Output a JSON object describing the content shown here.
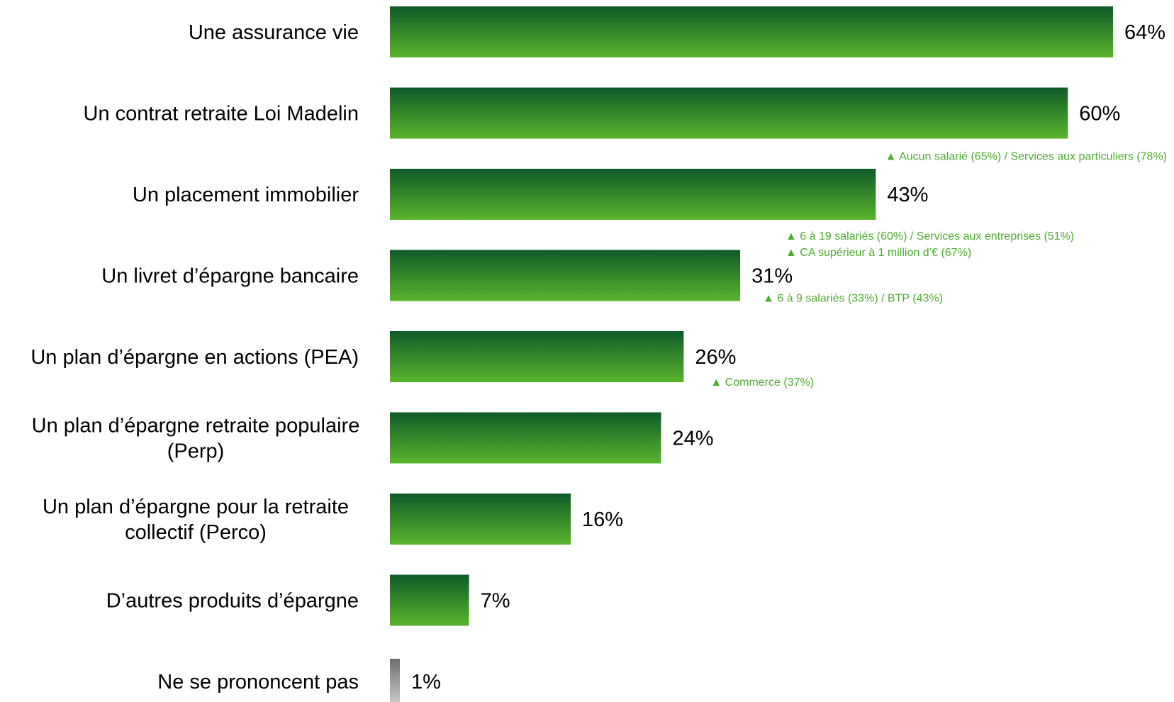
{
  "chart_data": {
    "type": "bar",
    "orientation": "horizontal",
    "unit": "%",
    "xlim": [
      0,
      64
    ],
    "colors": {
      "bar_top": "#0f5a29",
      "bar_bottom": "#5ab52c",
      "na_bar_top": "#6e6e6e",
      "na_bar_bottom": "#d4d4d4",
      "note": "#4fad2f",
      "text": "#000000"
    },
    "categories": [
      {
        "label": [
          "Une assurance vie"
        ],
        "value": 64,
        "value_label": "64%",
        "style": "green",
        "notes": []
      },
      {
        "label": [
          "Un contrat retraite Loi Madelin"
        ],
        "value": 60,
        "value_label": "60%",
        "style": "green",
        "notes": [
          "Aucun salarié (65%) / Services aux particuliers (78%)"
        ]
      },
      {
        "label": [
          "Un placement immobilier"
        ],
        "value": 43,
        "value_label": "43%",
        "style": "green",
        "notes": [
          "6 à 19 salariés (60%) / Services aux entreprises (51%)",
          "CA supérieur à 1 million d’€ (67%)"
        ]
      },
      {
        "label": [
          "Un livret d’épargne bancaire"
        ],
        "value": 31,
        "value_label": "31%",
        "style": "green",
        "notes": [
          "6 à 9 salariés (33%) / BTP (43%)"
        ]
      },
      {
        "label": [
          "Un plan d’épargne en actions (PEA)"
        ],
        "value": 26,
        "value_label": "26%",
        "style": "green",
        "notes": [
          "Commerce (37%)"
        ]
      },
      {
        "label": [
          "Un plan d’épargne retraite populaire",
          "(Perp)"
        ],
        "value": 24,
        "value_label": "24%",
        "style": "green",
        "notes": []
      },
      {
        "label": [
          "Un plan d’épargne pour la retraite",
          "collectif (Perco)"
        ],
        "value": 16,
        "value_label": "16%",
        "style": "green",
        "notes": []
      },
      {
        "label": [
          "D’autres produits d’épargne"
        ],
        "value": 7,
        "value_label": "7%",
        "style": "green",
        "notes": []
      },
      {
        "label": [
          "Ne se prononcent pas"
        ],
        "value": 1,
        "value_label": "1%",
        "style": "gray",
        "notes": []
      }
    ]
  }
}
